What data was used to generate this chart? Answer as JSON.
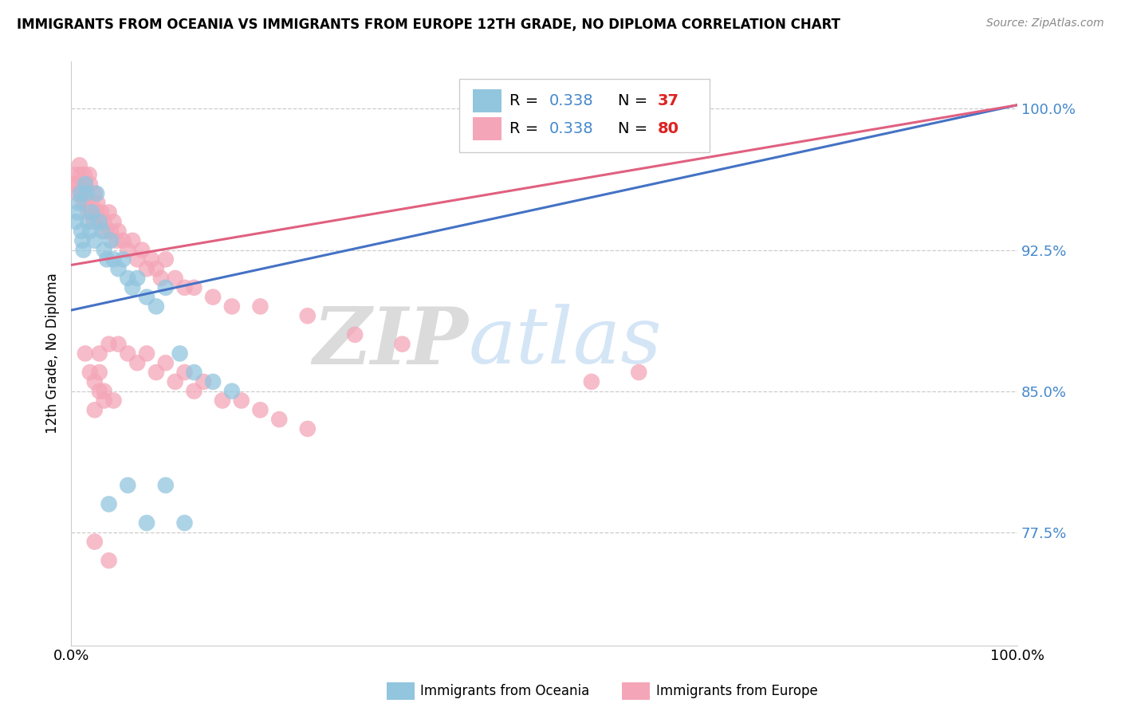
{
  "title": "IMMIGRANTS FROM OCEANIA VS IMMIGRANTS FROM EUROPE 12TH GRADE, NO DIPLOMA CORRELATION CHART",
  "source": "Source: ZipAtlas.com",
  "ylabel": "12th Grade, No Diploma",
  "x_range": [
    0.0,
    1.0
  ],
  "y_range": [
    0.715,
    1.025
  ],
  "y_ticks": [
    0.775,
    0.85,
    0.925,
    1.0
  ],
  "watermark_zip": "ZIP",
  "watermark_atlas": "atlas",
  "blue_color": "#92c5de",
  "pink_color": "#f4a6b8",
  "blue_line_color": "#4472c4",
  "pink_line_color": "#e06080",
  "r_value_color": "#4488cc",
  "n_value_color": "#dd2222",
  "blue_line_x0": 0.0,
  "blue_line_y0": 0.893,
  "blue_line_x1": 1.0,
  "blue_line_y1": 1.002,
  "pink_line_x0": 0.0,
  "pink_line_x1": 1.0,
  "pink_line_y0": 0.917,
  "pink_line_y1": 1.002,
  "oceania_x": [
    0.005,
    0.007,
    0.008,
    0.01,
    0.011,
    0.012,
    0.013,
    0.015,
    0.016,
    0.018,
    0.02,
    0.022,
    0.025,
    0.027,
    0.03,
    0.033,
    0.035,
    0.038,
    0.042,
    0.045,
    0.05,
    0.055,
    0.06,
    0.065,
    0.07,
    0.08,
    0.09,
    0.1,
    0.115,
    0.13,
    0.15,
    0.17,
    0.1,
    0.12,
    0.08,
    0.06,
    0.04
  ],
  "oceania_y": [
    0.94,
    0.945,
    0.95,
    0.955,
    0.935,
    0.93,
    0.925,
    0.96,
    0.955,
    0.94,
    0.935,
    0.945,
    0.93,
    0.955,
    0.94,
    0.935,
    0.925,
    0.92,
    0.93,
    0.92,
    0.915,
    0.92,
    0.91,
    0.905,
    0.91,
    0.9,
    0.895,
    0.905,
    0.87,
    0.86,
    0.855,
    0.85,
    0.8,
    0.78,
    0.78,
    0.8,
    0.79
  ],
  "europe_x": [
    0.003,
    0.005,
    0.007,
    0.008,
    0.009,
    0.01,
    0.011,
    0.012,
    0.013,
    0.014,
    0.015,
    0.016,
    0.017,
    0.018,
    0.019,
    0.02,
    0.022,
    0.023,
    0.024,
    0.025,
    0.027,
    0.028,
    0.03,
    0.032,
    0.035,
    0.037,
    0.04,
    0.042,
    0.045,
    0.048,
    0.05,
    0.055,
    0.06,
    0.065,
    0.07,
    0.075,
    0.08,
    0.085,
    0.09,
    0.095,
    0.1,
    0.11,
    0.12,
    0.13,
    0.15,
    0.17,
    0.2,
    0.25,
    0.3,
    0.35,
    0.05,
    0.06,
    0.07,
    0.08,
    0.09,
    0.1,
    0.11,
    0.12,
    0.13,
    0.14,
    0.16,
    0.18,
    0.2,
    0.22,
    0.25,
    0.03,
    0.04,
    0.025,
    0.035,
    0.045,
    0.015,
    0.02,
    0.025,
    0.03,
    0.035,
    0.55,
    0.6,
    0.025,
    0.04,
    0.03
  ],
  "europe_y": [
    0.96,
    0.965,
    0.955,
    0.96,
    0.97,
    0.965,
    0.96,
    0.955,
    0.95,
    0.965,
    0.96,
    0.955,
    0.95,
    0.945,
    0.965,
    0.96,
    0.95,
    0.945,
    0.94,
    0.955,
    0.945,
    0.95,
    0.94,
    0.945,
    0.94,
    0.935,
    0.945,
    0.935,
    0.94,
    0.93,
    0.935,
    0.93,
    0.925,
    0.93,
    0.92,
    0.925,
    0.915,
    0.92,
    0.915,
    0.91,
    0.92,
    0.91,
    0.905,
    0.905,
    0.9,
    0.895,
    0.895,
    0.89,
    0.88,
    0.875,
    0.875,
    0.87,
    0.865,
    0.87,
    0.86,
    0.865,
    0.855,
    0.86,
    0.85,
    0.855,
    0.845,
    0.845,
    0.84,
    0.835,
    0.83,
    0.87,
    0.875,
    0.84,
    0.845,
    0.845,
    0.87,
    0.86,
    0.855,
    0.86,
    0.85,
    0.855,
    0.86,
    0.77,
    0.76,
    0.85
  ]
}
